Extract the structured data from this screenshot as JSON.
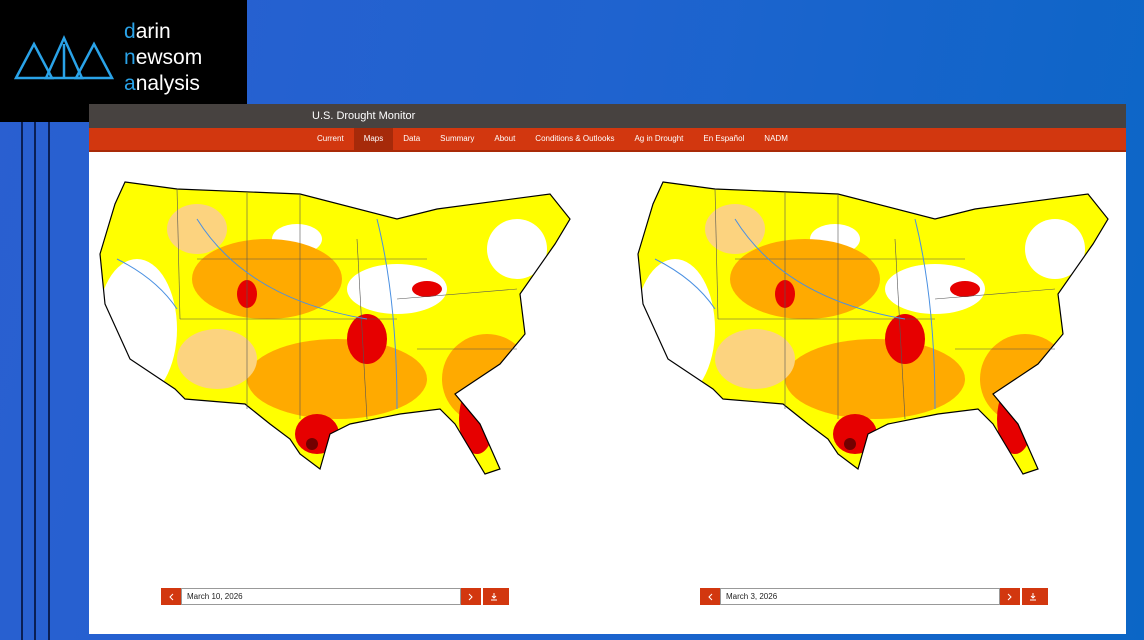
{
  "logo": {
    "lines": [
      "darin",
      "newsom",
      "analysis"
    ]
  },
  "header": {
    "title": "U.S. Drought Monitor"
  },
  "nav": {
    "items": [
      "Current",
      "Maps",
      "Data",
      "Summary",
      "About",
      "Conditions & Outlooks",
      "Ag in Drought",
      "En Español",
      "NADM"
    ],
    "active": 1
  },
  "maps": [
    {
      "date": "March 10, 2026"
    },
    {
      "date": "March 3, 2026"
    }
  ]
}
